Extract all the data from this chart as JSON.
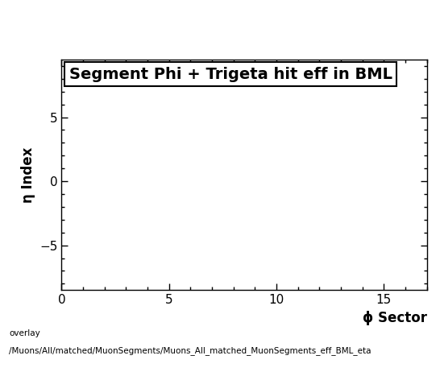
{
  "title": "Segment Phi + Trigeta hit eff in BML",
  "xlabel": "ϕ Sector",
  "ylabel": "η Index",
  "xlim": [
    0,
    17
  ],
  "ylim": [
    -8.5,
    9.5
  ],
  "xticks": [
    0,
    5,
    10,
    15
  ],
  "yticks": [
    -5,
    0,
    5
  ],
  "background_color": "#ffffff",
  "caption_line1": "overlay",
  "caption_line2": "/Muons/All/matched/MuonSegments/Muons_All_matched_MuonSegments_eff_BML_eta",
  "title_fontsize": 14,
  "axis_label_fontsize": 12,
  "tick_fontsize": 11,
  "caption_fontsize": 7.5
}
